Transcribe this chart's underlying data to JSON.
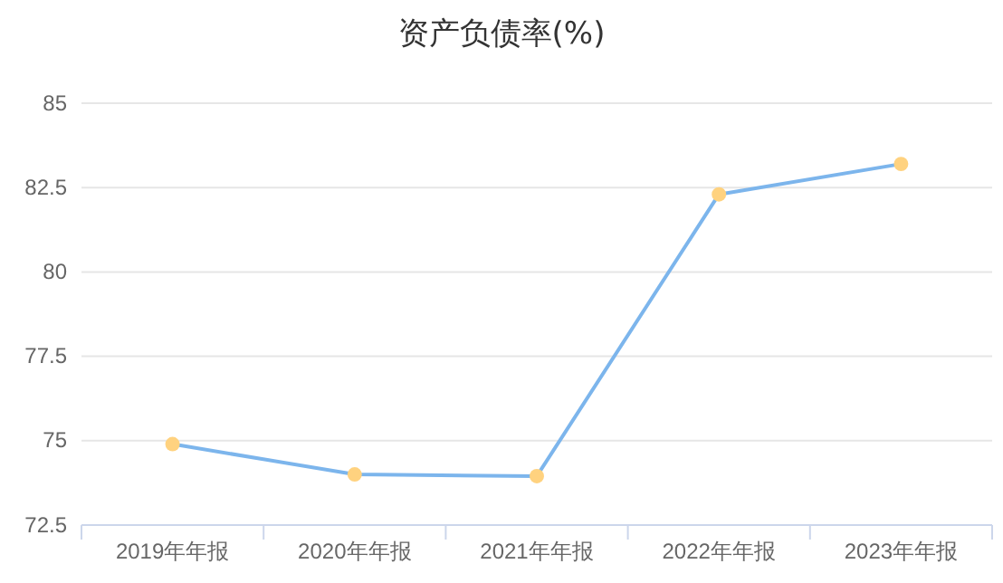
{
  "chart_data": {
    "type": "line",
    "title": "资产负债率(%)",
    "categories": [
      "2019年年报",
      "2020年年报",
      "2021年年报",
      "2022年年报",
      "2023年年报"
    ],
    "series": [
      {
        "color": "#7cb5ec",
        "values": [
          74.9,
          74.0,
          73.95,
          82.3,
          83.2
        ]
      }
    ],
    "ylim": [
      72.5,
      85
    ],
    "yticks": [
      72.5,
      75,
      77.5,
      80,
      82.5,
      85
    ],
    "grid": "y",
    "marker": "circle",
    "line_style": "solid"
  }
}
